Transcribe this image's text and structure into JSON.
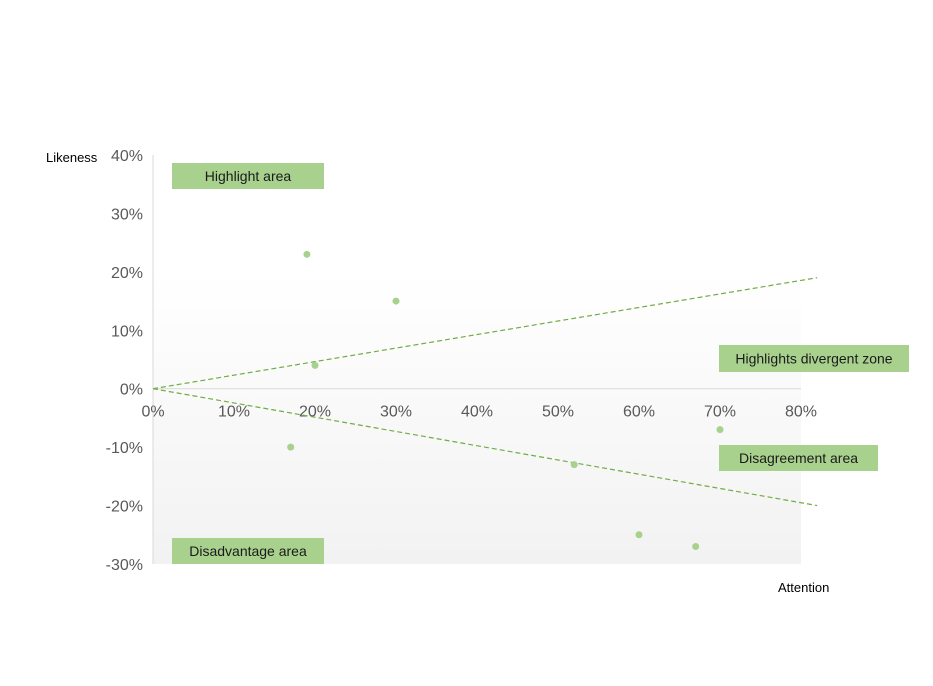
{
  "chart_data": {
    "type": "scatter",
    "xlabel": "Attention",
    "ylabel": "Likeness",
    "xlim": [
      0,
      0.8
    ],
    "ylim": [
      -0.3,
      0.4
    ],
    "x_ticks": [
      "0%",
      "10%",
      "20%",
      "30%",
      "40%",
      "50%",
      "60%",
      "70%",
      "80%"
    ],
    "y_ticks": [
      "40%",
      "30%",
      "20%",
      "10%",
      "0%",
      "-10%",
      "-20%",
      "-30%"
    ],
    "points": [
      {
        "x": 0.19,
        "y": 0.23
      },
      {
        "x": 0.3,
        "y": 0.15
      },
      {
        "x": 0.2,
        "y": 0.04
      },
      {
        "x": 0.17,
        "y": -0.1
      },
      {
        "x": 0.52,
        "y": -0.13
      },
      {
        "x": 0.6,
        "y": -0.25
      },
      {
        "x": 0.67,
        "y": -0.27
      },
      {
        "x": 0.7,
        "y": -0.07
      }
    ],
    "reference_lines": [
      {
        "from": [
          0,
          0
        ],
        "to": [
          0.82,
          0.19
        ],
        "style": "dashed"
      },
      {
        "from": [
          0,
          0
        ],
        "to": [
          0.82,
          -0.2
        ],
        "style": "dashed"
      }
    ],
    "zones": [
      {
        "label": "Highlight area"
      },
      {
        "label": "Highlights divergent zone"
      },
      {
        "label": "Disagreement area"
      },
      {
        "label": "Disadvantage area"
      }
    ],
    "colors": {
      "point": "#a9d18e",
      "line": "#70ad47",
      "zone_fill": "#a9d18e",
      "axis": "#d9d9d9",
      "plot_bg_top": "#ffffff",
      "plot_bg_bottom": "#f2f2f2"
    },
    "grid": false,
    "legend": "none"
  }
}
